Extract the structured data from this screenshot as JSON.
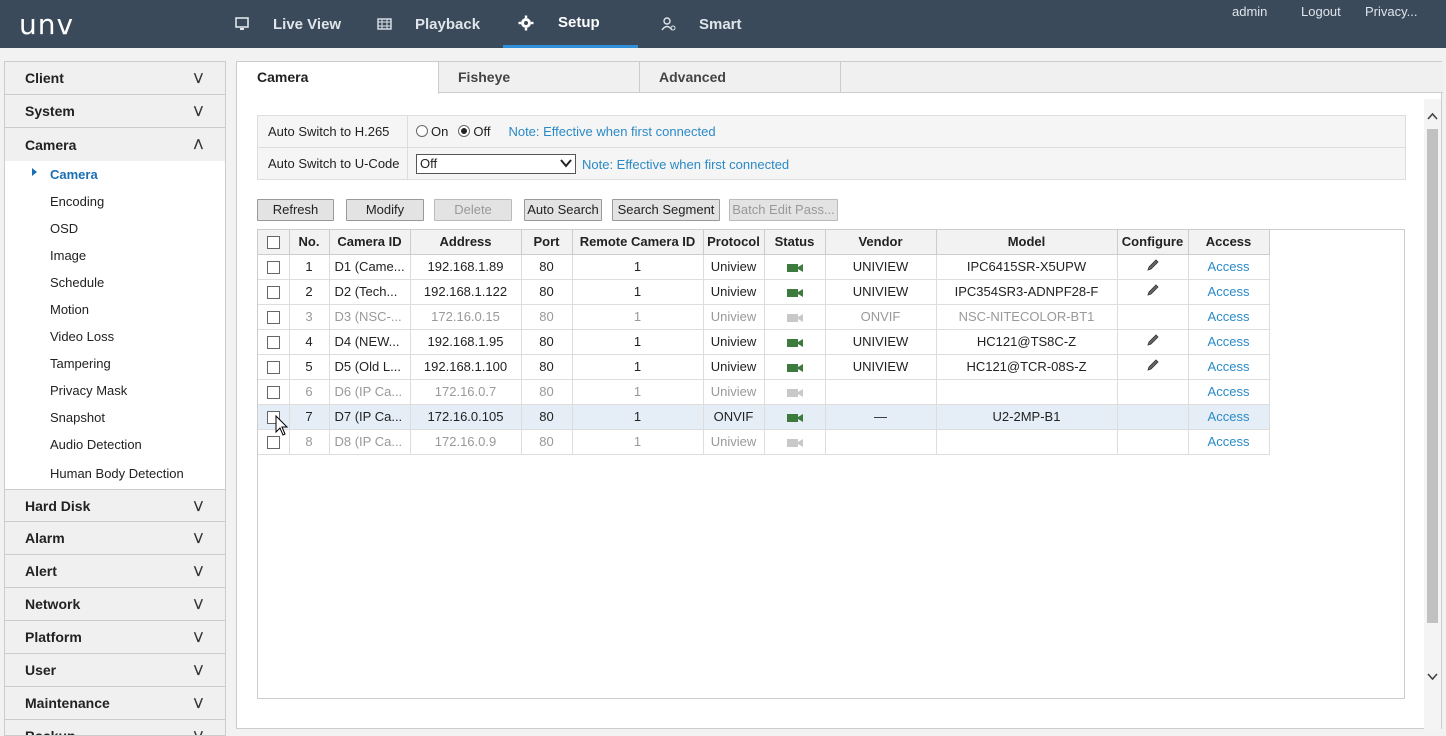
{
  "logo": "unv",
  "nav": [
    {
      "label": "Live View",
      "icon": "monitor-icon"
    },
    {
      "label": "Playback",
      "icon": "film-icon"
    },
    {
      "label": "Setup",
      "icon": "gear-icon"
    },
    {
      "label": "Smart",
      "icon": "person-icon"
    }
  ],
  "toplinks": {
    "user": "admin",
    "logout": "Logout",
    "privacy": "Privacy..."
  },
  "sidebar": {
    "groups_top": [
      "Client",
      "System"
    ],
    "camera_group": "Camera",
    "camera_items": [
      "Camera",
      "Encoding",
      "OSD",
      "Image",
      "Schedule",
      "Motion",
      "Video Loss",
      "Tampering",
      "Privacy Mask",
      "Snapshot",
      "Audio Detection",
      "Human Body Detection"
    ],
    "groups_bottom": [
      "Hard Disk",
      "Alarm",
      "Alert",
      "Network",
      "Platform",
      "User",
      "Maintenance",
      "Backup"
    ]
  },
  "tabs": [
    "Camera",
    "Fisheye",
    "Advanced"
  ],
  "settings": {
    "h265_label": "Auto Switch to H.265",
    "on": "On",
    "off": "Off",
    "note": "Note: Effective when first connected",
    "ucode_label": "Auto Switch to U-Code",
    "ucode_value": "Off"
  },
  "buttons": [
    "Refresh",
    "Modify",
    "Delete",
    "Auto Search",
    "Search Segment",
    "Batch Edit Pass..."
  ],
  "table": {
    "headers": [
      "No.",
      "Camera ID",
      "Address",
      "Port",
      "Remote Camera ID",
      "Protocol",
      "Status",
      "Vendor",
      "Model",
      "Configure",
      "Access"
    ],
    "rows": [
      {
        "no": "1",
        "id": "D1 (Came...",
        "addr": "192.168.1.89",
        "port": "80",
        "remote": "1",
        "proto": "Uniview",
        "vendor": "UNIVIEW",
        "model": "IPC6415SR-X5UPW",
        "access": "Access"
      },
      {
        "no": "2",
        "id": "D2 (Tech...",
        "addr": "192.168.1.122",
        "port": "80",
        "remote": "1",
        "proto": "Uniview",
        "vendor": "UNIVIEW",
        "model": "IPC354SR3-ADNPF28-F",
        "access": "Access"
      },
      {
        "no": "3",
        "id": "D3 (NSC-...",
        "addr": "172.16.0.15",
        "port": "80",
        "remote": "1",
        "proto": "Uniview",
        "vendor": "ONVIF",
        "model": "NSC-NITECOLOR-BT1",
        "access": "Access"
      },
      {
        "no": "4",
        "id": "D4 (NEW...",
        "addr": "192.168.1.95",
        "port": "80",
        "remote": "1",
        "proto": "Uniview",
        "vendor": "UNIVIEW",
        "model": "HC121@TS8C-Z",
        "access": "Access"
      },
      {
        "no": "5",
        "id": "D5 (Old L...",
        "addr": "192.168.1.100",
        "port": "80",
        "remote": "1",
        "proto": "Uniview",
        "vendor": "UNIVIEW",
        "model": "HC121@TCR-08S-Z",
        "access": "Access"
      },
      {
        "no": "6",
        "id": "D6 (IP Ca...",
        "addr": "172.16.0.7",
        "port": "80",
        "remote": "1",
        "proto": "Uniview",
        "vendor": "",
        "model": "",
        "access": "Access"
      },
      {
        "no": "7",
        "id": "D7 (IP Ca...",
        "addr": "172.16.0.105",
        "port": "80",
        "remote": "1",
        "proto": "ONVIF",
        "vendor": "—",
        "model": "U2-2MP-B1",
        "access": "Access"
      },
      {
        "no": "8",
        "id": "D8 (IP Ca...",
        "addr": "172.16.0.9",
        "port": "80",
        "remote": "1",
        "proto": "Uniview",
        "vendor": "",
        "model": "",
        "access": "Access"
      }
    ]
  }
}
